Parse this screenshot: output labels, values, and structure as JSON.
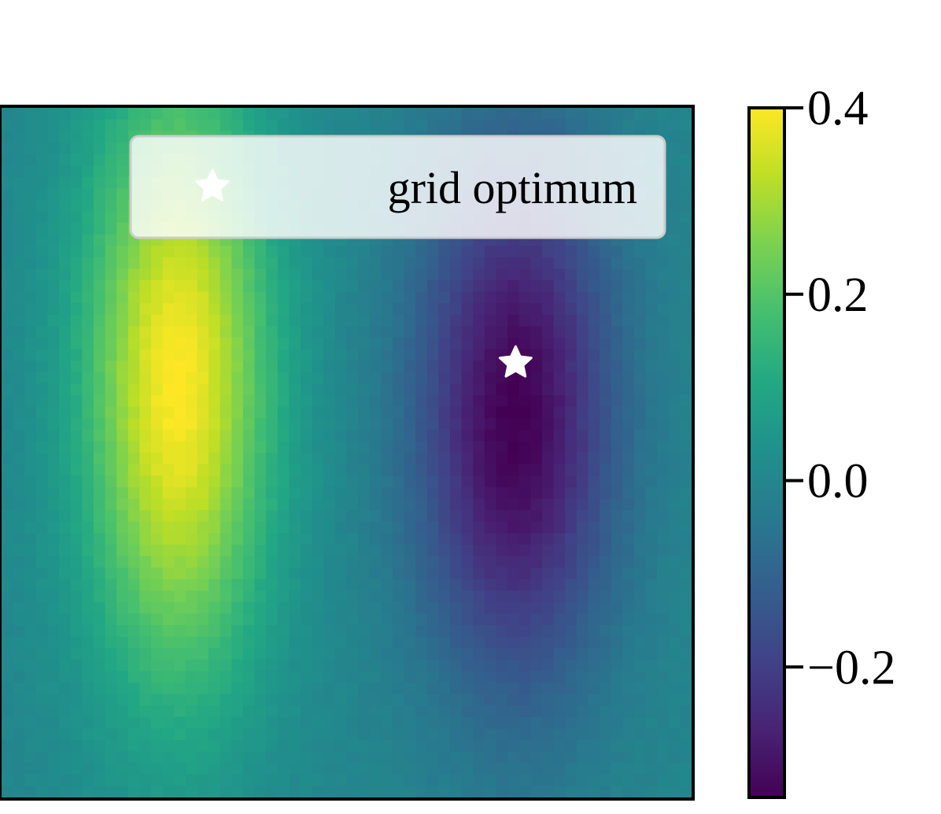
{
  "chart_data": {
    "type": "heatmap",
    "title": "",
    "xlabel": "",
    "ylabel": "",
    "colormap": "viridis",
    "grid": false,
    "axis_ticks_visible": false,
    "colorbar": {
      "vmin": -0.34,
      "vmax": 0.4,
      "ticks": [
        0.4,
        0.2,
        0.0,
        -0.2
      ],
      "tick_labels": [
        "0.4",
        "0.2",
        "0.0",
        "−0.2"
      ]
    },
    "field": {
      "resolution": 60,
      "baseline": 0.0,
      "peaks": [
        {
          "name": "maximum",
          "value": 0.4,
          "cx": 0.255,
          "cy": 0.4,
          "sx": 0.095,
          "sy": 0.31
        },
        {
          "name": "minimum",
          "value": -0.34,
          "cx": 0.745,
          "cy": 0.45,
          "sx": 0.1,
          "sy": 0.27
        }
      ]
    },
    "markers": [
      {
        "label": "grid optimum",
        "symbol": "star",
        "color": "#ffffff",
        "x": 0.745,
        "y": 0.37
      }
    ],
    "legend": {
      "entries": [
        {
          "label": "grid optimum",
          "symbol": "star",
          "color": "#ffffff"
        }
      ],
      "position": "top-right"
    }
  }
}
